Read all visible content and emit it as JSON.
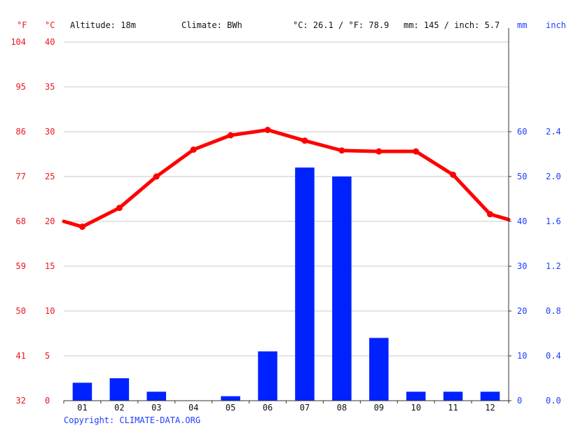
{
  "header": {
    "unit_f": "°F",
    "unit_c": "°C",
    "altitude": "Altitude: 18m",
    "climate": "Climate: BWh",
    "temp_avg": "°C: 26.1 / °F: 78.9",
    "precip_total": "mm: 145 / inch: 5.7",
    "unit_mm": "mm",
    "unit_inch": "inch"
  },
  "copyright": "Copyright: CLIMATE-DATA.ORG",
  "colors": {
    "temperature": "#ff0000",
    "precipitation": "#0022ff",
    "grid": "#c8c8c8",
    "left_axis_text": "#e8171d",
    "right_axis_text": "#1f3cff"
  },
  "chart_data": {
    "type": "bar+line",
    "categories": [
      "01",
      "02",
      "03",
      "04",
      "05",
      "06",
      "07",
      "08",
      "09",
      "10",
      "11",
      "12"
    ],
    "temperature_c": [
      19.4,
      21.5,
      25.0,
      28.0,
      29.6,
      30.2,
      29.0,
      27.9,
      27.8,
      27.8,
      25.2,
      20.8
    ],
    "temperature_edges": {
      "start": 20.0,
      "end": 20.2
    },
    "precipitation_mm": [
      4,
      5,
      2,
      0,
      1,
      11,
      52,
      50,
      14,
      2,
      2,
      2
    ],
    "left_axis_c": {
      "ylim": [
        0,
        40
      ],
      "ticks": [
        "0",
        "5",
        "10",
        "15",
        "20",
        "25",
        "30",
        "35",
        "40"
      ]
    },
    "left_axis_f": {
      "ticks": [
        "32",
        "41",
        "50",
        "59",
        "68",
        "77",
        "86",
        "95",
        "104"
      ]
    },
    "right_axis_mm": {
      "ylim": [
        0,
        80
      ],
      "ticks": [
        "0",
        "10",
        "20",
        "30",
        "40",
        "50",
        "60"
      ]
    },
    "right_axis_inch": {
      "ticks": [
        "0.0",
        "0.4",
        "0.8",
        "1.2",
        "1.6",
        "2.0",
        "2.4"
      ]
    },
    "grid": true
  }
}
